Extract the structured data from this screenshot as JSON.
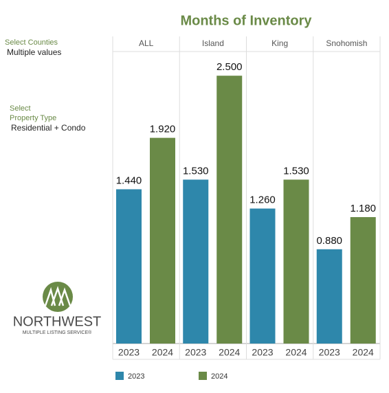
{
  "filters": [
    {
      "label_lines": [
        "Select Counties"
      ],
      "value": "Multiple values"
    },
    {
      "label_lines": [
        "Select",
        "Property Type"
      ],
      "value": "Residential + Condo"
    }
  ],
  "logo": {
    "name": "NORTHWEST",
    "tagline": "MULTIPLE LISTING SERVICE®"
  },
  "chart_data": {
    "type": "bar",
    "title": "Months of Inventory",
    "categories": [
      "ALL",
      "Island",
      "King",
      "Snohomish"
    ],
    "series": [
      {
        "name": "2023",
        "color": "#2e87ab",
        "values": [
          1.44,
          1.53,
          1.26,
          0.88
        ],
        "value_labels": [
          "1.440",
          "1.530",
          "1.260",
          "0.880"
        ]
      },
      {
        "name": "2024",
        "color": "#6a8a47",
        "values": [
          1.92,
          2.5,
          1.53,
          1.18
        ],
        "value_labels": [
          "1.920",
          "2.500",
          "1.530",
          "1.180"
        ]
      }
    ],
    "ylim": [
      0,
      2.7
    ],
    "grid": false
  }
}
